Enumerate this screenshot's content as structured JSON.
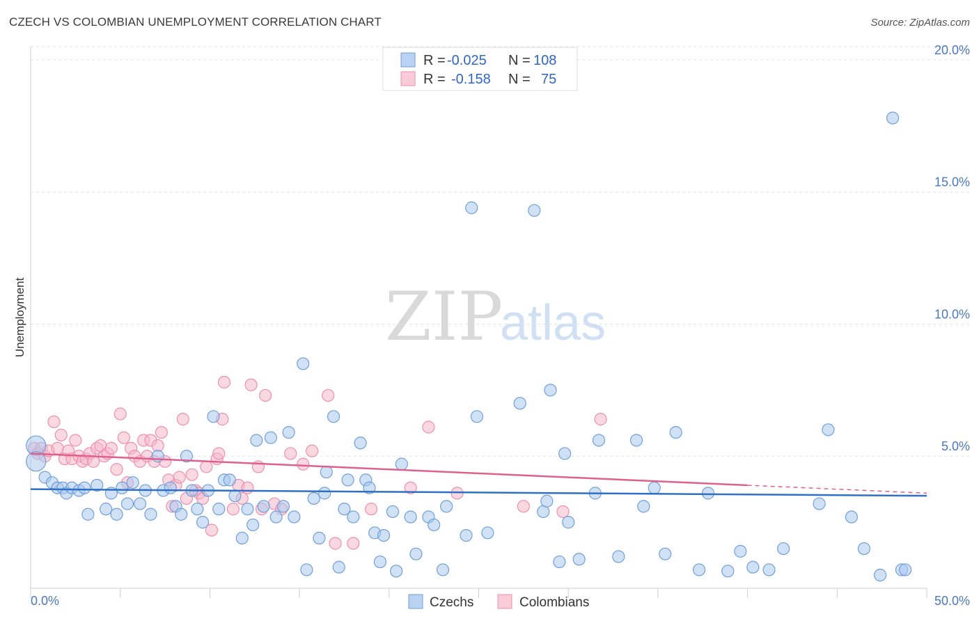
{
  "header": {
    "title": "CZECH VS COLOMBIAN UNEMPLOYMENT CORRELATION CHART",
    "source": "Source: ZipAtlas.com"
  },
  "watermark": {
    "zip": "ZIP",
    "atlas": "atlas"
  },
  "legend": {
    "r_label": "R =",
    "n_label": "N =",
    "czech": {
      "r": "-0.025",
      "n": "108"
    },
    "colombian": {
      "r": "-0.158",
      "n": "75"
    }
  },
  "colors": {
    "czech_fill": "#aac8ee",
    "czech_stroke": "#6f9fd8",
    "czech_line": "#2f6fc6",
    "colombian_fill": "#f6b8cb",
    "colombian_stroke": "#ee8fae",
    "colombian_line": "#e0608d"
  },
  "chart_data": {
    "type": "scatter",
    "title": "CZECH VS COLOMBIAN UNEMPLOYMENT CORRELATION CHART",
    "xlabel": "",
    "ylabel": "Unemployment",
    "xlim": [
      0,
      50
    ],
    "ylim": [
      0,
      20.5
    ],
    "x_tick_labels": [
      "0.0%",
      "50.0%"
    ],
    "y_ticks": [
      5,
      10,
      15,
      20
    ],
    "y_tick_labels": [
      "5.0%",
      "10.0%",
      "15.0%",
      "20.0%"
    ],
    "grid": true,
    "series": [
      {
        "name": "Czechs",
        "trend": {
          "x": [
            0,
            50
          ],
          "y": [
            3.75,
            3.5
          ]
        },
        "points": [
          [
            0.3,
            5.4
          ],
          [
            0.3,
            4.8
          ],
          [
            0.8,
            4.2
          ],
          [
            1.2,
            4.0
          ],
          [
            1.5,
            3.8
          ],
          [
            1.8,
            3.8
          ],
          [
            2.0,
            3.6
          ],
          [
            2.3,
            3.8
          ],
          [
            2.7,
            3.7
          ],
          [
            3.0,
            3.8
          ],
          [
            3.2,
            2.8
          ],
          [
            3.7,
            3.9
          ],
          [
            4.2,
            3.0
          ],
          [
            4.5,
            3.6
          ],
          [
            4.8,
            2.8
          ],
          [
            5.1,
            3.8
          ],
          [
            5.4,
            3.2
          ],
          [
            5.7,
            4.0
          ],
          [
            6.1,
            3.2
          ],
          [
            6.4,
            3.7
          ],
          [
            6.7,
            2.8
          ],
          [
            7.1,
            5.0
          ],
          [
            7.4,
            3.7
          ],
          [
            7.8,
            3.8
          ],
          [
            8.1,
            3.1
          ],
          [
            8.4,
            2.8
          ],
          [
            8.7,
            5.0
          ],
          [
            9.0,
            3.7
          ],
          [
            9.3,
            3.0
          ],
          [
            9.6,
            2.5
          ],
          [
            9.9,
            3.7
          ],
          [
            10.2,
            6.5
          ],
          [
            10.5,
            3.0
          ],
          [
            10.8,
            4.1
          ],
          [
            11.1,
            4.1
          ],
          [
            11.4,
            3.5
          ],
          [
            11.8,
            1.9
          ],
          [
            12.1,
            3.0
          ],
          [
            12.4,
            2.4
          ],
          [
            12.6,
            5.6
          ],
          [
            13.0,
            3.1
          ],
          [
            13.4,
            5.7
          ],
          [
            13.7,
            2.7
          ],
          [
            14.1,
            3.1
          ],
          [
            14.4,
            5.9
          ],
          [
            14.7,
            2.7
          ],
          [
            15.2,
            8.5
          ],
          [
            15.4,
            0.7
          ],
          [
            15.8,
            3.4
          ],
          [
            16.1,
            1.9
          ],
          [
            16.4,
            3.6
          ],
          [
            16.5,
            4.4
          ],
          [
            16.9,
            6.5
          ],
          [
            17.2,
            0.8
          ],
          [
            17.5,
            3.0
          ],
          [
            17.7,
            4.1
          ],
          [
            18.0,
            2.7
          ],
          [
            18.4,
            5.5
          ],
          [
            18.7,
            4.1
          ],
          [
            18.9,
            3.8
          ],
          [
            19.2,
            2.1
          ],
          [
            19.5,
            1.0
          ],
          [
            19.7,
            2.0
          ],
          [
            20.2,
            2.9
          ],
          [
            20.4,
            0.65
          ],
          [
            20.7,
            4.7
          ],
          [
            21.2,
            2.7
          ],
          [
            21.5,
            1.3
          ],
          [
            22.2,
            2.7
          ],
          [
            22.5,
            2.4
          ],
          [
            23.0,
            0.7
          ],
          [
            23.2,
            3.1
          ],
          [
            24.3,
            2.0
          ],
          [
            24.6,
            14.4
          ],
          [
            24.9,
            6.5
          ],
          [
            25.5,
            2.1
          ],
          [
            27.3,
            7.0
          ],
          [
            28.1,
            14.3
          ],
          [
            28.6,
            2.9
          ],
          [
            28.8,
            3.3
          ],
          [
            29.0,
            7.5
          ],
          [
            29.5,
            1.0
          ],
          [
            29.8,
            5.1
          ],
          [
            30.0,
            2.5
          ],
          [
            30.6,
            1.1
          ],
          [
            31.5,
            3.6
          ],
          [
            31.7,
            5.6
          ],
          [
            32.8,
            1.2
          ],
          [
            33.8,
            5.6
          ],
          [
            34.2,
            3.1
          ],
          [
            34.8,
            3.8
          ],
          [
            35.4,
            1.3
          ],
          [
            36.0,
            5.9
          ],
          [
            37.3,
            0.7
          ],
          [
            37.8,
            3.6
          ],
          [
            38.9,
            0.65
          ],
          [
            39.6,
            1.4
          ],
          [
            40.3,
            0.8
          ],
          [
            41.2,
            0.7
          ],
          [
            44.0,
            3.2
          ],
          [
            44.5,
            6.0
          ],
          [
            45.8,
            2.7
          ],
          [
            46.5,
            1.5
          ],
          [
            47.4,
            0.5
          ],
          [
            48.1,
            17.8
          ],
          [
            48.6,
            0.7
          ],
          [
            48.8,
            0.7
          ],
          [
            42.0,
            1.5
          ]
        ]
      },
      {
        "name": "Colombians",
        "trend": {
          "x": [
            0,
            40
          ],
          "y": [
            5.1,
            3.9
          ]
        },
        "trend_dashed": {
          "x": [
            40,
            50
          ],
          "y": [
            3.9,
            3.6
          ]
        },
        "points": [
          [
            0.2,
            5.3
          ],
          [
            0.4,
            5.1
          ],
          [
            0.6,
            5.3
          ],
          [
            0.8,
            5.0
          ],
          [
            1.0,
            5.2
          ],
          [
            1.3,
            6.3
          ],
          [
            1.5,
            5.3
          ],
          [
            1.7,
            5.8
          ],
          [
            1.9,
            4.9
          ],
          [
            2.1,
            5.2
          ],
          [
            2.3,
            4.9
          ],
          [
            2.5,
            5.6
          ],
          [
            2.7,
            5.0
          ],
          [
            2.9,
            4.8
          ],
          [
            3.1,
            4.9
          ],
          [
            3.3,
            5.1
          ],
          [
            3.5,
            4.8
          ],
          [
            3.7,
            5.3
          ],
          [
            3.9,
            5.4
          ],
          [
            4.1,
            5.0
          ],
          [
            4.3,
            5.1
          ],
          [
            4.5,
            5.3
          ],
          [
            4.8,
            4.5
          ],
          [
            5.0,
            6.6
          ],
          [
            5.2,
            5.7
          ],
          [
            5.4,
            4.0
          ],
          [
            5.6,
            5.3
          ],
          [
            5.8,
            5.0
          ],
          [
            6.1,
            4.8
          ],
          [
            6.3,
            5.6
          ],
          [
            6.5,
            5.0
          ],
          [
            6.7,
            5.6
          ],
          [
            6.9,
            4.8
          ],
          [
            7.1,
            5.4
          ],
          [
            7.3,
            5.9
          ],
          [
            7.5,
            4.8
          ],
          [
            7.7,
            4.1
          ],
          [
            7.9,
            3.1
          ],
          [
            8.1,
            3.9
          ],
          [
            8.3,
            4.2
          ],
          [
            8.5,
            6.4
          ],
          [
            8.7,
            3.4
          ],
          [
            9.0,
            4.3
          ],
          [
            9.2,
            3.7
          ],
          [
            9.4,
            3.6
          ],
          [
            9.6,
            3.4
          ],
          [
            9.8,
            4.6
          ],
          [
            10.1,
            2.2
          ],
          [
            10.4,
            4.9
          ],
          [
            10.5,
            5.1
          ],
          [
            10.7,
            6.4
          ],
          [
            10.8,
            7.8
          ],
          [
            11.3,
            3.0
          ],
          [
            11.6,
            3.9
          ],
          [
            11.8,
            3.4
          ],
          [
            12.1,
            3.8
          ],
          [
            12.3,
            7.7
          ],
          [
            12.7,
            4.6
          ],
          [
            12.9,
            3.0
          ],
          [
            13.1,
            7.3
          ],
          [
            13.6,
            3.2
          ],
          [
            14.0,
            3.0
          ],
          [
            14.5,
            5.1
          ],
          [
            15.2,
            4.7
          ],
          [
            15.7,
            5.2
          ],
          [
            16.6,
            7.3
          ],
          [
            17.0,
            1.7
          ],
          [
            18.0,
            1.7
          ],
          [
            19.0,
            3.0
          ],
          [
            21.2,
            3.8
          ],
          [
            22.2,
            6.1
          ],
          [
            23.8,
            3.6
          ],
          [
            27.5,
            3.1
          ],
          [
            29.7,
            2.9
          ],
          [
            31.8,
            6.4
          ]
        ]
      }
    ]
  },
  "bottom_legend": {
    "czech_label": "Czechs",
    "colombian_label": "Colombians"
  }
}
